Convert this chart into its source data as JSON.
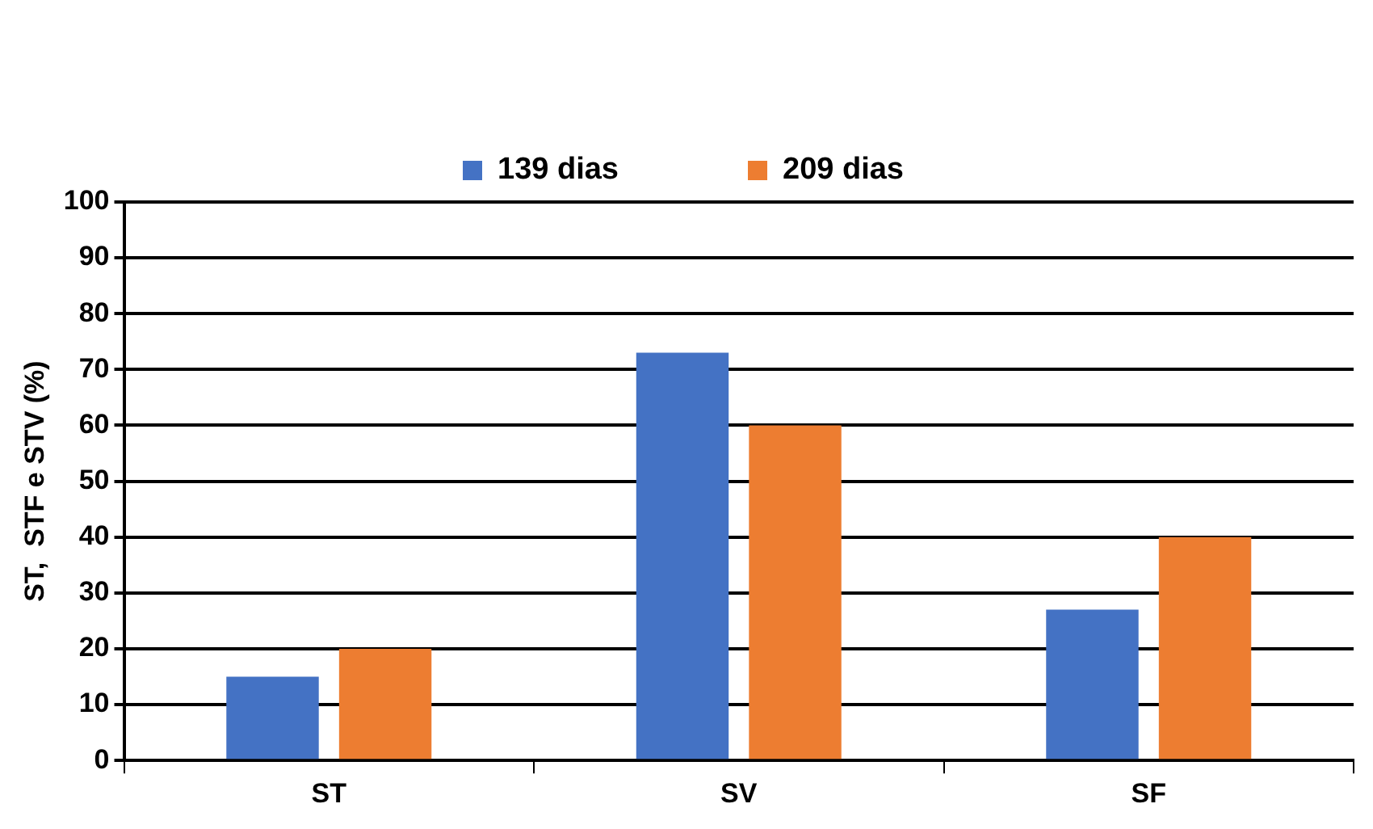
{
  "chart_data": {
    "type": "bar",
    "ylabel": "ST,  STF e STV (%)",
    "categories": [
      "ST",
      "SV",
      "SF"
    ],
    "series": [
      {
        "name": "139 dias",
        "color": "#4472c4",
        "values": [
          15,
          73,
          27
        ]
      },
      {
        "name": "209 dias",
        "color": "#ed7d31",
        "values": [
          20,
          60,
          40
        ]
      }
    ],
    "ylim": [
      0,
      100
    ],
    "yticks": [
      0,
      10,
      20,
      30,
      40,
      50,
      60,
      70,
      80,
      90,
      100
    ],
    "grid": "y",
    "legend": "top"
  }
}
